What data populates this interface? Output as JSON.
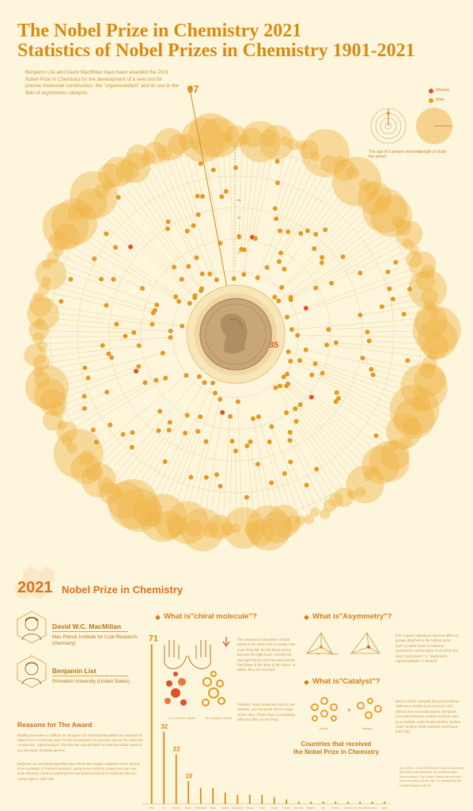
{
  "header": {
    "title_line1": "The Nobel Prize in Chemistry 2021",
    "title_line2": "Statistics of Nobel Prizes in Chemistry 1901-2021",
    "intro": "Benjamin List and David MacMillan have been awarded the 2021 Nobel Prize in Chemistry for the development of a new tool for precise molecular construction: the \"organocatalyst\" and its use in the field of asymmetric catalysis."
  },
  "legend": {
    "women_label": "Women",
    "male_label": "Male",
    "age_caption": "The age of a person receiving the award",
    "length_caption": "Length of study"
  },
  "colors": {
    "background": "#fdf6dc",
    "male": "#e39a22",
    "women": "#e0502a",
    "bubble": "#f0b54a",
    "accent": "#d98a12"
  },
  "dial": {
    "max_age_label": "97",
    "min_age_label": "35",
    "scale_ticks": [
      "80",
      "60",
      "40",
      "20"
    ]
  },
  "section": {
    "year": "2021",
    "title": "Nobel Prize in Chemistry"
  },
  "laureates": [
    {
      "name": "David W.C. MacMillan",
      "affiliation": "Max Planck Institute for Coal Research (Germany)"
    },
    {
      "name": "Benjamin List",
      "affiliation": "Princeton University (United States)"
    }
  ],
  "reasons": {
    "title": "Reasons for The Award",
    "p1": "Building molecules is a difficult art. Benjamin List and David MacMillan are awarded the Nobel Prize in Chemistry 2021 for their development of a precise new tool for molecular construction: organocatalysis. This has had a great impact on pharmaceutical research, and has made chemistry greener.",
    "p2": "Benjamin List and David MacMillan have shown that organic catalysts can be used to drive multitudes of chemical reactions. Using these reactions, researchers can now more efficiently construct anything from new pharmaceuticals to molecules that can capture light in solar cells."
  },
  "chiral": {
    "title": "What is\"chiral molecule\"?",
    "text1": "The structural composition of both hands is the same, but no matter how much they fall, the left hand cannot become the right hand. And the left and right hands each become exactly the image of the other in the mirror, or rather, they are mirrored.",
    "text2": "Similarly, many molecules exist in two variants, one being the mirror image of the other. These have a completely different effect on the body.",
    "label_a": "A: a common variant",
    "label_b": "B: a common variant"
  },
  "asymmetry": {
    "title": "What is\"Asymmetry\"?",
    "text": "If an organic substance has four different groups attached to the carbon atom, such a carbon atom is called an asymmetric carbon atom, from which the word \"asymmetric\" in \"asymmetric organocatalysis\" is derived.",
    "label_a": "No",
    "label_b": "1 carbon"
  },
  "catalyst": {
    "title": "What is\"Catalyst\"?",
    "text": "Before All the catalysts discovered before 2000 were metals and enzymes, and without any real explanations. Benjamin List tested whether proline could be used as a catalyst. Lister tested whether proline could catalyze aldol reactions and found that it did.",
    "label_a": "proline",
    "label_b": "catalyst"
  },
  "countries": {
    "title_line1": "Countries that received",
    "title_line2": "the Nobel Prize in Chemistry",
    "caption": "As of 2021, of the 189 Nobel Prizes in chemistry that have been awarded, 20 countries have been involved. The United States has won the most chemistry prizes, with 71, followed by the United Kingdom with 32."
  },
  "chart_data": {
    "type": "bar",
    "title": "Countries that received the Nobel Prize in Chemistry",
    "categories": [
      "USA",
      "UK",
      "Germany",
      "France",
      "Switzerland",
      "Japan",
      "Sweden",
      "Netherlands",
      "Canada",
      "Israel",
      "Austria",
      "Norway",
      "Denmark",
      "Belgium",
      "Italy",
      "Russia",
      "Finland",
      "Czech Republic",
      "Argentina",
      "Egypt"
    ],
    "values": [
      71,
      32,
      22,
      10,
      7,
      7,
      5,
      4,
      4,
      4,
      3,
      2,
      1,
      1,
      1,
      1,
      1,
      1,
      1,
      1
    ],
    "value_labels": [
      "71",
      "32",
      "22",
      "10",
      "",
      "",
      "",
      "",
      "",
      "",
      "",
      "",
      "",
      "",
      "",
      "",
      "",
      "",
      "",
      ""
    ],
    "xlabel": "",
    "ylabel": "",
    "ylim": [
      0,
      75
    ]
  }
}
